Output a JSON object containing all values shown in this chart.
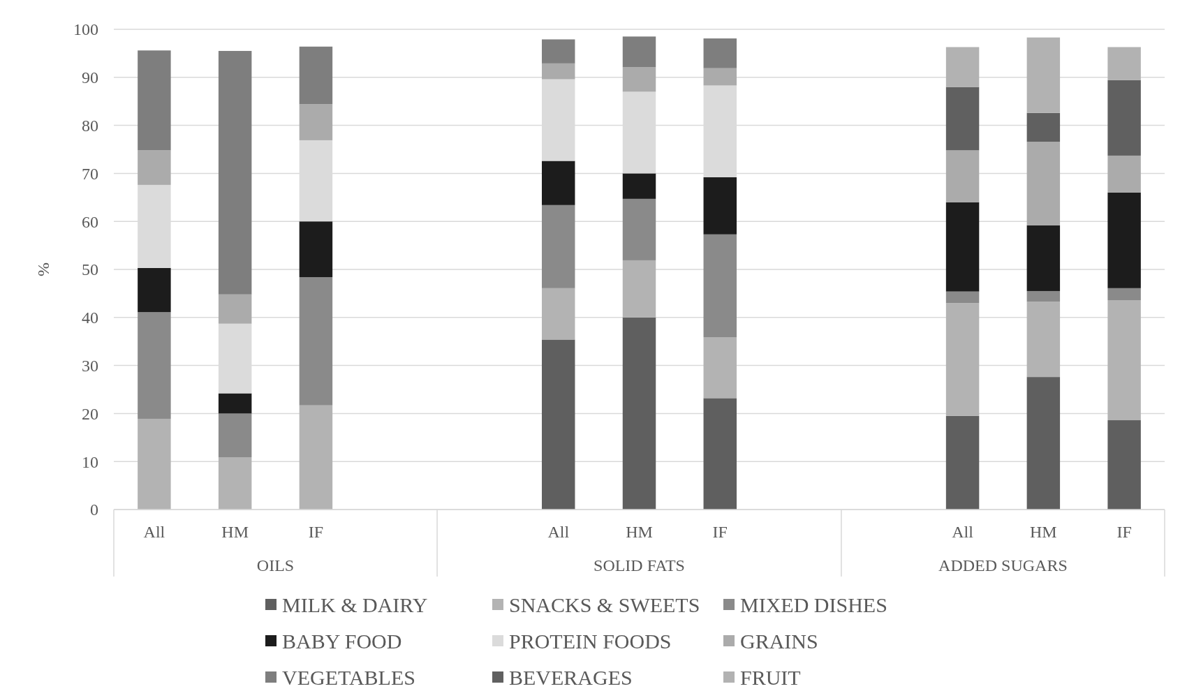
{
  "chart_data": {
    "type": "bar",
    "stacked": true,
    "ylabel": "%",
    "categories": [
      "All",
      "HM",
      "IF",
      null,
      null,
      "All",
      "HM",
      "IF",
      null,
      null,
      "All",
      "HM",
      "IF"
    ],
    "annotations": [
      "OILS",
      "SOLID FATS",
      "ADDED SUGARS"
    ],
    "series": [
      {
        "name": "MILK & DAIRY",
        "color": "#5f5f5f",
        "values": [
          0,
          0,
          0,
          null,
          null,
          35.4,
          40.0,
          23.2,
          null,
          null,
          19.5,
          27.6,
          18.6
        ]
      },
      {
        "name": "SNACKS & SWEETS",
        "color": "#b3b3b3",
        "values": [
          18.9,
          10.9,
          21.7,
          null,
          null,
          10.7,
          11.9,
          12.7,
          null,
          null,
          23.5,
          15.7,
          25.0
        ]
      },
      {
        "name": "MIXED DISHES",
        "color": "#8a8a8a",
        "values": [
          22.2,
          9.1,
          26.7,
          null,
          null,
          17.3,
          12.8,
          21.4,
          null,
          null,
          2.4,
          2.2,
          2.5
        ]
      },
      {
        "name": "BABY FOOD",
        "color": "#1c1c1c",
        "values": [
          9.2,
          4.2,
          11.6,
          null,
          null,
          9.2,
          5.3,
          11.9,
          null,
          null,
          18.6,
          13.7,
          19.9
        ]
      },
      {
        "name": "PROTEIN FOODS",
        "color": "#dbdbdb",
        "values": [
          17.3,
          14.5,
          16.9,
          null,
          null,
          17.0,
          17.0,
          19.1,
          null,
          null,
          0,
          0,
          0
        ]
      },
      {
        "name": "GRAINS",
        "color": "#ababab",
        "values": [
          7.2,
          6.1,
          7.5,
          null,
          null,
          3.3,
          5.1,
          3.6,
          null,
          null,
          10.8,
          17.4,
          7.7
        ]
      },
      {
        "name": "VEGETABLES",
        "color": "#7e7e7e",
        "values": [
          20.8,
          50.7,
          12.0,
          null,
          null,
          5.0,
          6.4,
          6.2,
          null,
          null,
          0,
          0,
          0
        ]
      },
      {
        "name": "BEVERAGES",
        "color": "#606060",
        "values": [
          0,
          0,
          0,
          null,
          null,
          0,
          0,
          0,
          null,
          null,
          13.2,
          6.0,
          15.7
        ]
      },
      {
        "name": "FRUIT",
        "color": "#b2b2b2",
        "values": [
          0,
          0,
          0,
          null,
          null,
          0,
          0,
          0,
          null,
          null,
          8.3,
          15.7,
          6.9
        ]
      }
    ],
    "ylim": [
      0,
      100
    ],
    "yticks": [
      0,
      10,
      20,
      30,
      40,
      50,
      60,
      70,
      80,
      90,
      100
    ],
    "grid": "y",
    "legend": "bottom"
  }
}
